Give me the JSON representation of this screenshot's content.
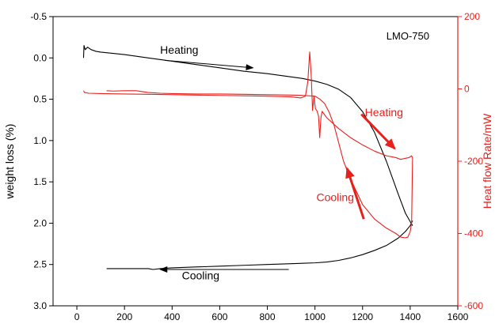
{
  "chart_data": {
    "type": "line",
    "annotation_tag": "LMO-750",
    "x_axis": {
      "label": "",
      "lim": [
        -100,
        1600
      ],
      "ticks": [
        0,
        200,
        400,
        600,
        800,
        1000,
        1200,
        1400,
        1600
      ],
      "tick_labels": [
        "0",
        "200",
        "400",
        "600",
        "800",
        "1000",
        "1200",
        "1400",
        "1600"
      ]
    },
    "y_left": {
      "label": "weight loss (%)",
      "lim": [
        -0.5,
        3.0
      ],
      "inverted": true,
      "color": "#000000",
      "ticks": [
        -0.5,
        0.0,
        0.5,
        1.0,
        1.5,
        2.0,
        2.5,
        3.0
      ],
      "tick_labels": [
        "-0.5",
        "0.0",
        "0.5",
        "1.0",
        "1.5",
        "2.0",
        "2.5",
        "3.0"
      ]
    },
    "y_right": {
      "label": "Heat flow Rate/mW",
      "lim": [
        -600,
        200
      ],
      "color": "#e8201c",
      "ticks": [
        200,
        0,
        -200,
        -400,
        -600
      ],
      "tick_labels": [
        "200",
        "0",
        "-200",
        "-400",
        "-600"
      ]
    },
    "series": [
      {
        "axis": "left",
        "color": "#000000",
        "x": [
          28,
          30,
          35,
          45,
          60,
          80,
          100,
          200,
          300,
          400,
          500,
          600,
          700,
          800,
          900,
          950,
          1000,
          1050,
          1100,
          1150,
          1200,
          1250,
          1300,
          1350,
          1380,
          1400,
          1410
        ],
        "y": [
          0.0,
          -0.15,
          -0.1,
          -0.13,
          -0.1,
          -0.08,
          -0.07,
          -0.04,
          0.0,
          0.04,
          0.08,
          0.12,
          0.16,
          0.19,
          0.23,
          0.25,
          0.28,
          0.32,
          0.38,
          0.48,
          0.65,
          0.9,
          1.25,
          1.65,
          1.88,
          1.98,
          2.03
        ]
      },
      {
        "axis": "left",
        "color": "#000000",
        "x": [
          1410,
          1400,
          1380,
          1350,
          1300,
          1250,
          1200,
          1150,
          1100,
          1050,
          1000,
          900,
          800,
          700,
          600,
          500,
          400,
          350,
          320,
          300,
          200,
          125
        ],
        "y": [
          1.97,
          2.03,
          2.1,
          2.18,
          2.27,
          2.33,
          2.38,
          2.42,
          2.45,
          2.47,
          2.48,
          2.49,
          2.5,
          2.51,
          2.52,
          2.53,
          2.54,
          2.55,
          2.56,
          2.55,
          2.55,
          2.55
        ]
      },
      {
        "axis": "right",
        "color": "#e8201c",
        "x": [
          28,
          32,
          50,
          100,
          200,
          300,
          400,
          500,
          600,
          700,
          800,
          900,
          940,
          960,
          970,
          978,
          984,
          990,
          996,
          1002,
          1008,
          1015,
          1020,
          1025,
          1030,
          1050,
          1100,
          1150,
          1200,
          1250,
          1300,
          1340,
          1360,
          1380,
          1395,
          1405,
          1410
        ],
        "y": [
          -5,
          -10,
          -12,
          -13,
          -14,
          -15,
          -16,
          -17,
          -18,
          -19,
          -20,
          -22,
          -25,
          -20,
          20,
          102,
          40,
          -60,
          -20,
          -55,
          -60,
          -75,
          -135,
          -80,
          -62,
          -80,
          -110,
          -135,
          -155,
          -172,
          -185,
          -190,
          -195,
          -192,
          -190,
          -185,
          -190
        ]
      },
      {
        "axis": "right",
        "color": "#e8201c",
        "x": [
          1410,
          1406,
          1400,
          1390,
          1380,
          1360,
          1340,
          1300,
          1250,
          1200,
          1150,
          1120,
          1100,
          1080,
          1060,
          1040,
          1020,
          1000,
          950,
          900,
          800,
          700,
          600,
          500,
          400,
          350,
          300,
          250,
          200,
          150,
          125
        ],
        "y": [
          -190,
          -370,
          -395,
          -410,
          -412,
          -410,
          -400,
          -385,
          -360,
          -320,
          -250,
          -200,
          -150,
          -100,
          -65,
          -40,
          -28,
          -20,
          -18,
          -17,
          -16,
          -15,
          -14,
          -14,
          -13,
          -12,
          -10,
          -5,
          -5,
          -6,
          -5
        ]
      }
    ],
    "annotations": [
      {
        "text": "Heating",
        "color": "#000000",
        "arrow": true,
        "arrow_from": [
          370,
          0.03
        ],
        "arrow_to": [
          740,
          0.12
        ],
        "label_pos": [
          430,
          -0.05
        ]
      },
      {
        "text": "Cooling",
        "color": "#000000",
        "arrow": true,
        "arrow_from": [
          890,
          2.56
        ],
        "arrow_to": [
          350,
          2.56
        ],
        "label_pos": [
          520,
          2.68
        ]
      },
      {
        "text": "Heating",
        "color": "#e8201c",
        "arrow": true,
        "axis": "right",
        "arrow_from": [
          1195,
          -70
        ],
        "arrow_to": [
          1335,
          -165
        ],
        "label_pos": [
          1290,
          -75
        ]
      },
      {
        "text": "Cooling",
        "color": "#e8201c",
        "arrow": true,
        "axis": "right",
        "arrow_from": [
          1205,
          -360
        ],
        "arrow_to": [
          1135,
          -220
        ],
        "label_pos": [
          1085,
          -310
        ]
      }
    ]
  }
}
